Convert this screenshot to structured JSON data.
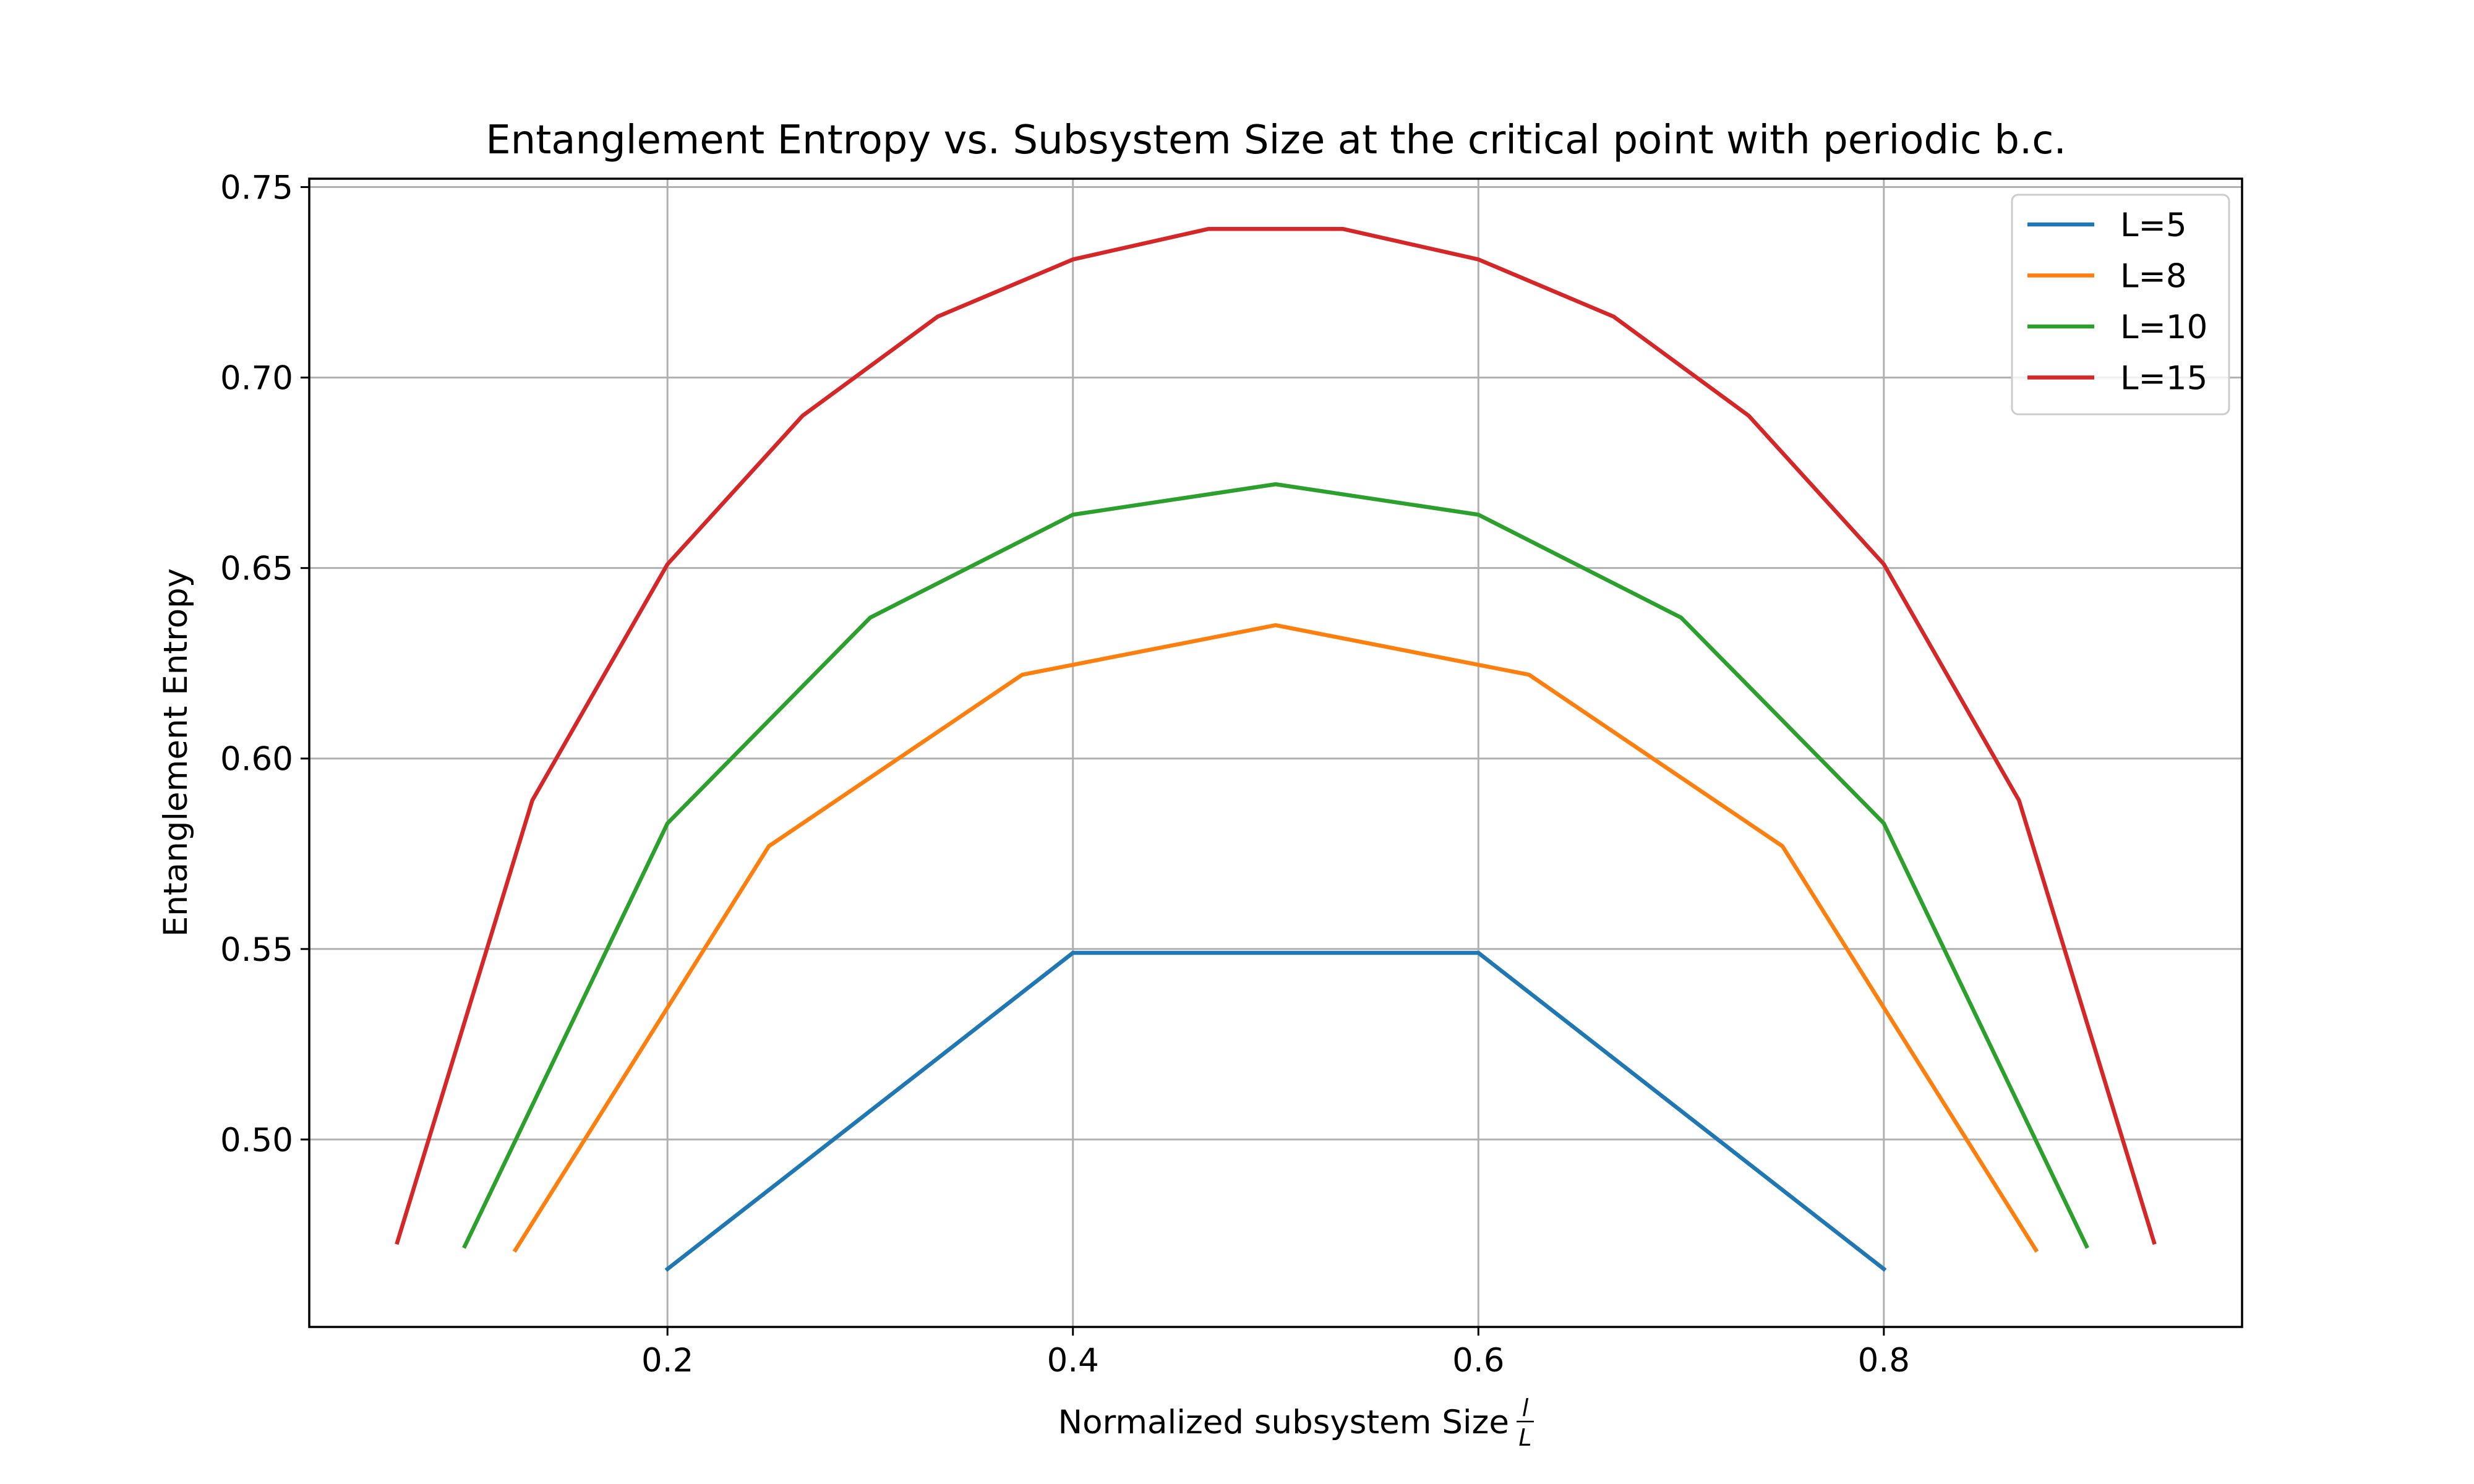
{
  "chart_data": {
    "type": "line",
    "title": "Entanglement Entropy vs. Subsystem Size at the critical point with periodic b.c.",
    "xlabel": "Normalized subsystem Size",
    "xlabel_fraction": {
      "numerator": "l",
      "denominator": "L"
    },
    "ylabel": "Entanglement Entropy",
    "xlim": [
      0.0233,
      0.9767
    ],
    "ylim": [
      0.4508,
      0.7522
    ],
    "xticks": [
      0.2,
      0.4,
      0.6,
      0.8
    ],
    "xtick_labels": [
      "0.2",
      "0.4",
      "0.6",
      "0.8"
    ],
    "yticks": [
      0.5,
      0.55,
      0.6,
      0.65,
      0.7,
      0.75
    ],
    "ytick_labels": [
      "0.50",
      "0.55",
      "0.60",
      "0.65",
      "0.70",
      "0.75"
    ],
    "grid": true,
    "legend_position": "top-right",
    "series": [
      {
        "name": "L=5",
        "color": "#1f77b4",
        "x": [
          0.2,
          0.4,
          0.6,
          0.8
        ],
        "y": [
          0.466,
          0.549,
          0.549,
          0.466
        ]
      },
      {
        "name": "L=8",
        "color": "#ff7f0e",
        "x": [
          0.125,
          0.25,
          0.375,
          0.5,
          0.625,
          0.75,
          0.875
        ],
        "y": [
          0.471,
          0.577,
          0.622,
          0.635,
          0.622,
          0.577,
          0.471
        ]
      },
      {
        "name": "L=10",
        "color": "#2ca02c",
        "x": [
          0.1,
          0.2,
          0.3,
          0.4,
          0.5,
          0.6,
          0.7,
          0.8,
          0.9
        ],
        "y": [
          0.472,
          0.583,
          0.637,
          0.664,
          0.672,
          0.664,
          0.637,
          0.583,
          0.472
        ]
      },
      {
        "name": "L=15",
        "color": "#d62728",
        "x": [
          0.0667,
          0.1333,
          0.2,
          0.2667,
          0.3333,
          0.4,
          0.4667,
          0.5333,
          0.6,
          0.6667,
          0.7333,
          0.8,
          0.8667,
          0.9333
        ],
        "y": [
          0.473,
          0.589,
          0.651,
          0.69,
          0.716,
          0.731,
          0.739,
          0.739,
          0.731,
          0.716,
          0.69,
          0.651,
          0.589,
          0.473
        ]
      }
    ]
  }
}
